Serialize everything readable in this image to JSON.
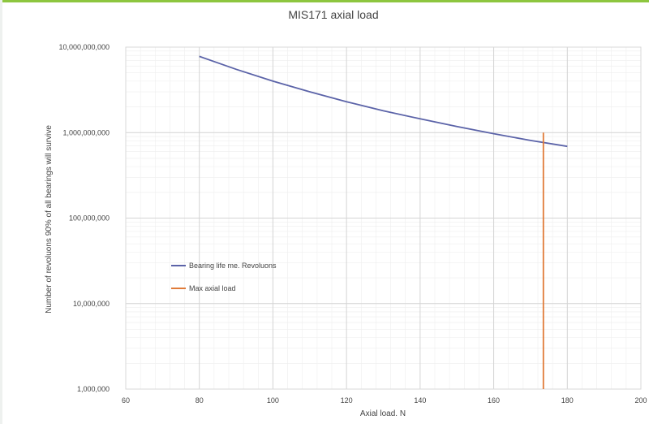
{
  "accent_color": "#8dc63f",
  "chart_data": {
    "type": "line",
    "title": "MIS171 axial load",
    "xlabel": "Axial load. N",
    "ylabel": "Number of revoluons 90% of all bearings will survive",
    "xlim": [
      60,
      200
    ],
    "ylim": [
      1000000,
      10000000000
    ],
    "y_scale": "log",
    "x_ticks": [
      60,
      80,
      100,
      120,
      140,
      160,
      180,
      200
    ],
    "x_tick_labels": [
      "60",
      "80",
      "100",
      "120",
      "140",
      "160",
      "180",
      "200"
    ],
    "y_ticks": [
      1000000,
      10000000,
      100000000,
      1000000000,
      10000000000
    ],
    "y_tick_labels": [
      "1,000,000",
      "10,000,000",
      "100,000,000",
      "1,000,000,000",
      "10,000,000,000"
    ],
    "grid": true,
    "minor_grid": true,
    "legend_position": "left, inside plot",
    "series": [
      {
        "name": "Bearing life me. Revoluons",
        "color": "#5b63a8",
        "x": [
          80,
          90,
          100,
          110,
          120,
          130,
          140,
          150,
          160,
          170,
          180
        ],
        "y": [
          7800000000,
          5500000000,
          4000000000,
          3000000000,
          2300000000,
          1800000000,
          1450000000,
          1180000000,
          970000000,
          810000000,
          690000000
        ]
      },
      {
        "name": "Max axial load",
        "color": "#e07b39",
        "x": [
          173.5,
          173.5
        ],
        "y": [
          1000000,
          1000000000
        ]
      }
    ]
  }
}
